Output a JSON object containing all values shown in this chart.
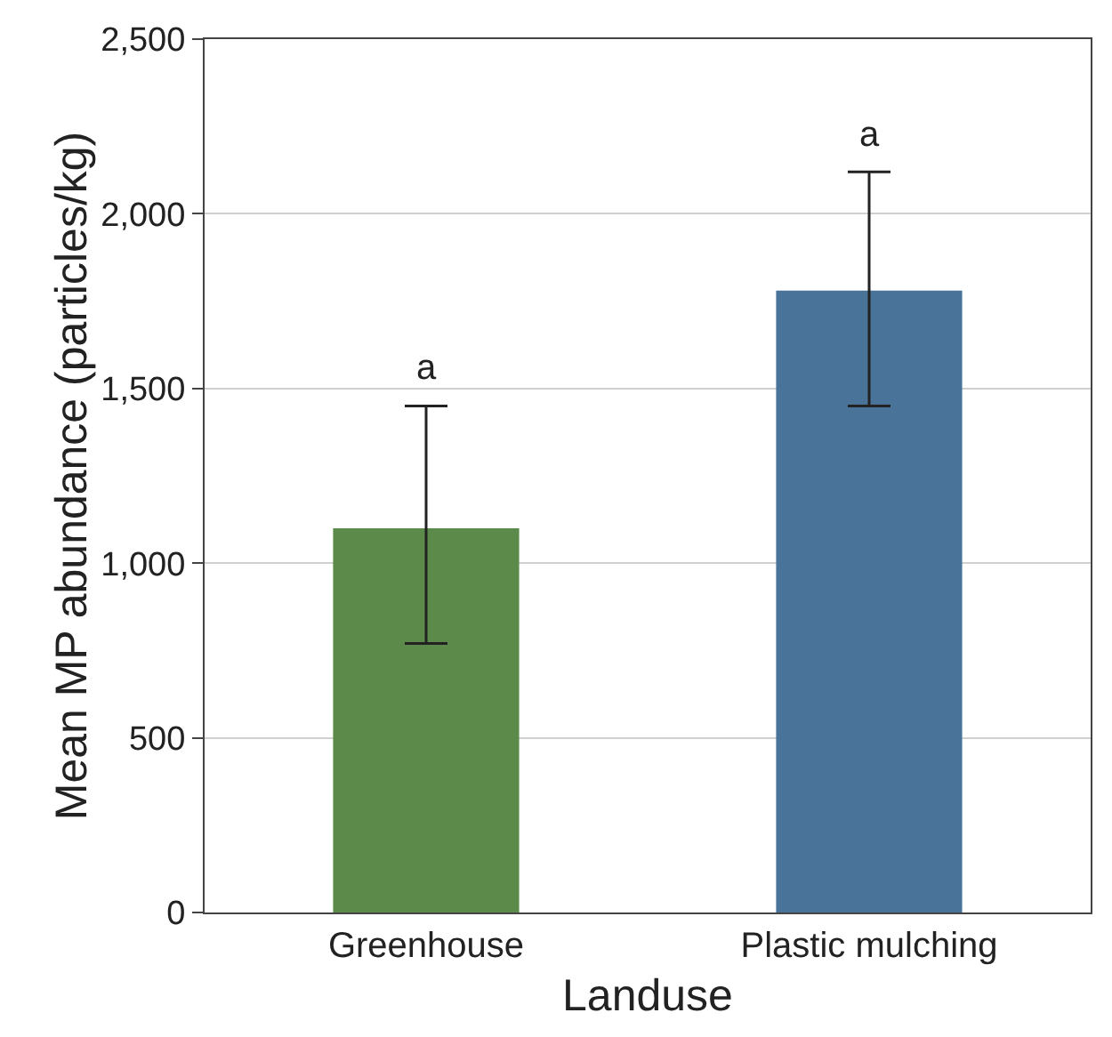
{
  "chart_data": {
    "type": "bar",
    "xlabel": "Landuse",
    "ylabel": "Mean MP abundance (particles/kg)",
    "categories": [
      "Greenhouse",
      "Plastic mulching"
    ],
    "values": [
      1100,
      1780
    ],
    "colors": [
      "#5b8a4b",
      "#4a7399"
    ],
    "errors": [
      [
        770,
        1450
      ],
      [
        1450,
        2120
      ]
    ],
    "annotations": [
      {
        "text": "a",
        "x": "Greenhouse",
        "y": 1450
      },
      {
        "text": "a",
        "x": "Plastic mulching",
        "y": 2120
      }
    ],
    "ylim": [
      0,
      2500
    ],
    "yticks": [
      {
        "value": 0,
        "label": "0"
      },
      {
        "value": 500,
        "label": "500"
      },
      {
        "value": 1000,
        "label": "1,000"
      },
      {
        "value": 1500,
        "label": "1,500"
      },
      {
        "value": 2000,
        "label": "2,000"
      },
      {
        "value": 2500,
        "label": "2,500"
      }
    ],
    "grid": "y"
  }
}
